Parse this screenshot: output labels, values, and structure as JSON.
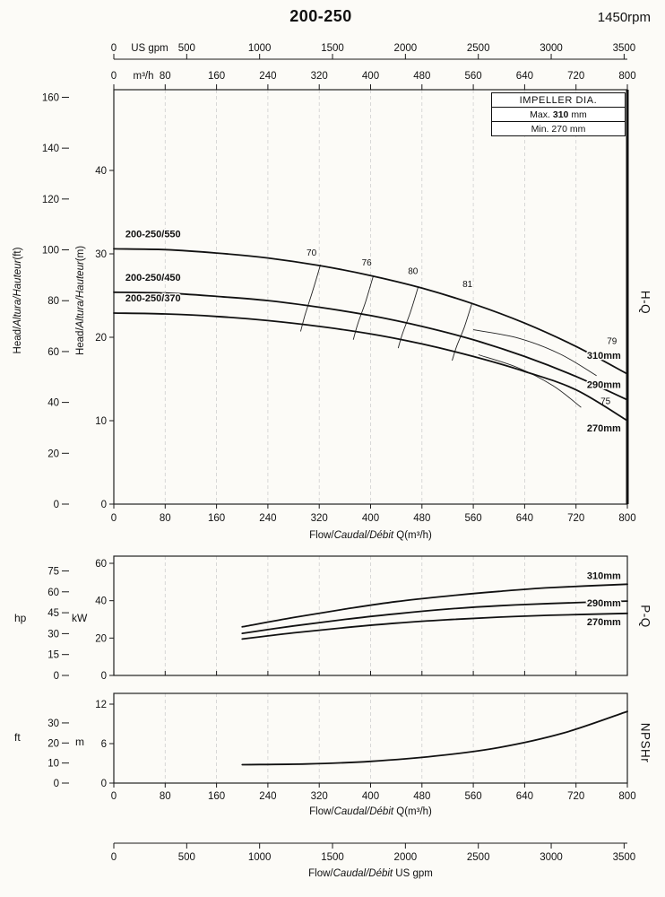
{
  "header": {
    "model": "200-250",
    "speed": "1450rpm"
  },
  "impeller_box": {
    "title": "IMPELLER DIA.",
    "max_label": "Max.",
    "max_value": "310",
    "max_unit": "mm",
    "min_label": "Min.",
    "min_value": "270",
    "min_unit": "mm"
  },
  "side_labels": {
    "hq": "H-Q",
    "pq": "P-Q",
    "npshr": "NPSHr"
  },
  "axis_titles": {
    "head_ft": {
      "pre": "Head/",
      "italic": "Altura/Hauteur",
      "post": "(ft)"
    },
    "head_m": {
      "pre": "Head/",
      "italic": "Altura/Hauteur",
      "post": "(m)"
    },
    "hp": "hp",
    "kw": "kW",
    "ft": "ft",
    "m": "m",
    "gpm_top": "US gpm",
    "m3h_top": "m³/h",
    "flow_m3h": {
      "pre": "Flow/",
      "italic": "Caudal/Débit",
      "post": " Q(m³/h)"
    },
    "flow_gpm": {
      "pre": "Flow/",
      "italic": "Caudal/Débit",
      "post": "  US gpm"
    }
  },
  "chart_data": {
    "type": "line",
    "title": "200-250 centrifugal pump performance curves at 1450rpm",
    "x_axis": {
      "label_m3h": "Flow/Caudal/Débit Q(m³/h)",
      "label_gpm": "Flow/Caudal/Débit US gpm",
      "min_m3h": 0,
      "max_m3h": 800,
      "ticks_m3h": [
        0,
        80,
        160,
        240,
        320,
        400,
        480,
        560,
        640,
        720,
        800
      ],
      "ticks_gpm": [
        0,
        500,
        1000,
        1500,
        2000,
        2500,
        3000,
        3500
      ]
    },
    "panels": {
      "hq": {
        "name": "H-Q",
        "ylabel_m": "Head (m)",
        "ylabel_ft": "Head (ft)",
        "y_m_ticks": [
          0,
          10,
          20,
          30,
          40
        ],
        "y_ft_ticks": [
          0,
          20,
          40,
          60,
          80,
          100,
          120,
          140,
          160
        ],
        "curves": [
          {
            "id": "310mm",
            "model": "200-250/550",
            "model_label_at": [
              18,
              32.0
            ],
            "dia_label": "310mm",
            "dia_label_at": [
              790,
              17.4
            ],
            "points": [
              [
                0,
                30.6
              ],
              [
                80,
                30.5
              ],
              [
                160,
                30.1
              ],
              [
                240,
                29.5
              ],
              [
                320,
                28.6
              ],
              [
                400,
                27.4
              ],
              [
                480,
                25.9
              ],
              [
                560,
                24.0
              ],
              [
                640,
                21.7
              ],
              [
                720,
                18.9
              ],
              [
                800,
                15.6
              ]
            ]
          },
          {
            "id": "290mm",
            "model": "200-250/450",
            "model_label_at": [
              18,
              26.8
            ],
            "dia_label": "290mm",
            "dia_label_at": [
              790,
              13.9
            ],
            "points": [
              [
                0,
                25.4
              ],
              [
                80,
                25.3
              ],
              [
                160,
                24.9
              ],
              [
                240,
                24.4
              ],
              [
                320,
                23.6
              ],
              [
                400,
                22.6
              ],
              [
                480,
                21.3
              ],
              [
                560,
                19.7
              ],
              [
                640,
                17.7
              ],
              [
                720,
                15.3
              ],
              [
                800,
                12.5
              ]
            ]
          },
          {
            "id": "270mm",
            "model": "200-250/370",
            "model_label_at": [
              18,
              24.3
            ],
            "dia_label": "270mm",
            "dia_label_at": [
              790,
              8.7
            ],
            "points": [
              [
                0,
                22.9
              ],
              [
                80,
                22.8
              ],
              [
                160,
                22.5
              ],
              [
                240,
                22.0
              ],
              [
                320,
                21.3
              ],
              [
                400,
                20.4
              ],
              [
                480,
                19.2
              ],
              [
                560,
                17.7
              ],
              [
                640,
                15.9
              ],
              [
                720,
                13.7
              ],
              [
                800,
                10.0
              ]
            ]
          }
        ],
        "efficiency_lines": [
          {
            "label": "70",
            "label_at": [
              308,
              29.8
            ],
            "points": [
              [
                322,
                28.7
              ],
              [
                310,
                25.6
              ],
              [
                298,
                22.7
              ],
              [
                291,
                20.7
              ]
            ]
          },
          {
            "label": "76",
            "label_at": [
              394,
              28.6
            ],
            "points": [
              [
                404,
                27.3
              ],
              [
                392,
                24.2
              ],
              [
                380,
                21.6
              ],
              [
                373,
                19.7
              ]
            ]
          },
          {
            "label": "80",
            "label_at": [
              466,
              27.6
            ],
            "points": [
              [
                474,
                26.0
              ],
              [
                462,
                23.0
              ],
              [
                450,
                20.5
              ],
              [
                443,
                18.7
              ]
            ]
          },
          {
            "label": "81",
            "label_at": [
              551,
              26.0
            ],
            "points": [
              [
                558,
                24.1
              ],
              [
                546,
                21.2
              ],
              [
                534,
                18.9
              ],
              [
                527,
                17.2
              ]
            ]
          },
          {
            "label": "79",
            "label_at": [
              776,
              19.2
            ],
            "points": [
              [
                560,
                20.9
              ],
              [
                630,
                19.9
              ],
              [
                695,
                18.0
              ],
              [
                752,
                15.4
              ]
            ]
          },
          {
            "label": "75",
            "label_at": [
              766,
              12.0
            ],
            "points": [
              [
                568,
                17.9
              ],
              [
                628,
                16.4
              ],
              [
                684,
                14.2
              ],
              [
                728,
                11.6
              ]
            ]
          }
        ]
      },
      "pq": {
        "name": "P-Q",
        "ylabel_kw": "Power (kW)",
        "ylabel_hp": "Power (hp)",
        "y_kw_ticks": [
          0,
          20,
          40,
          60
        ],
        "y_hp_ticks": [
          0,
          15,
          30,
          45,
          60,
          75
        ],
        "curves": [
          {
            "id": "310mm",
            "dia_label": "310mm",
            "dia_label_at": [
              790,
              51.5
            ],
            "points": [
              [
                200,
                26
              ],
              [
                280,
                31
              ],
              [
                360,
                35.5
              ],
              [
                440,
                39.5
              ],
              [
                520,
                42.5
              ],
              [
                600,
                45
              ],
              [
                680,
                47
              ],
              [
                800,
                48.8
              ]
            ]
          },
          {
            "id": "290mm",
            "dia_label": "290mm",
            "dia_label_at": [
              790,
              37.0
            ],
            "points": [
              [
                200,
                22.5
              ],
              [
                280,
                26.5
              ],
              [
                360,
                30
              ],
              [
                440,
                33
              ],
              [
                520,
                35.5
              ],
              [
                600,
                37.3
              ],
              [
                680,
                38.5
              ],
              [
                800,
                39.8
              ]
            ]
          },
          {
            "id": "270mm",
            "dia_label": "270mm",
            "dia_label_at": [
              790,
              26.8
            ],
            "points": [
              [
                200,
                19.5
              ],
              [
                280,
                22.8
              ],
              [
                360,
                25.6
              ],
              [
                440,
                28
              ],
              [
                520,
                29.8
              ],
              [
                600,
                31.2
              ],
              [
                680,
                32.2
              ],
              [
                800,
                33.2
              ]
            ]
          }
        ]
      },
      "npshr": {
        "name": "NPSHr",
        "ylabel_m": "NPSHr (m)",
        "ylabel_ft": "NPSHr (ft)",
        "y_m_ticks": [
          0,
          6,
          12
        ],
        "y_ft_ticks": [
          0,
          10,
          20,
          30
        ],
        "curves": [
          {
            "id": "npshr",
            "points": [
              [
                200,
                2.8
              ],
              [
                300,
                2.9
              ],
              [
                400,
                3.3
              ],
              [
                500,
                4.1
              ],
              [
                600,
                5.4
              ],
              [
                700,
                7.6
              ],
              [
                800,
                10.9
              ]
            ]
          }
        ]
      }
    }
  }
}
